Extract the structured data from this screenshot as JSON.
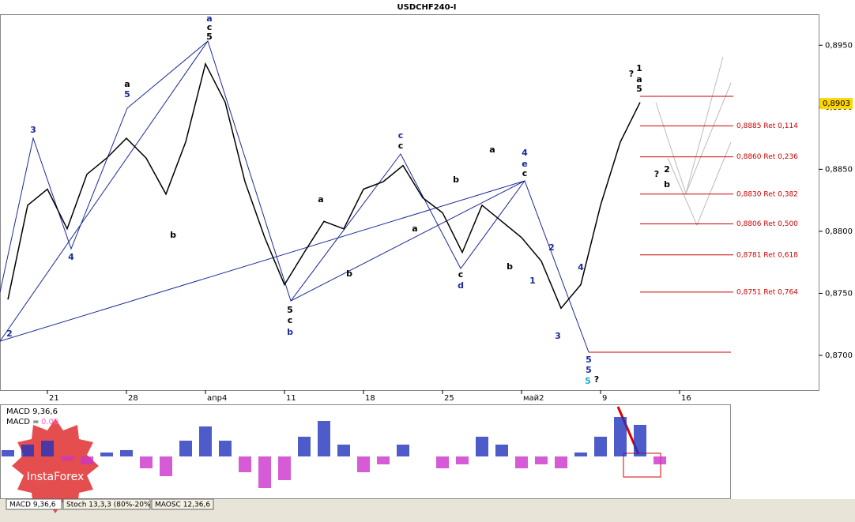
{
  "chart_data": {
    "type": "line",
    "title": "USDCHF240-I",
    "categories": [
      null,
      null,
      "21",
      null,
      null,
      null,
      "28",
      null,
      null,
      null,
      "апр4",
      null,
      null,
      null,
      "11",
      null,
      null,
      null,
      "18",
      null,
      null,
      null,
      "25",
      null,
      null,
      null,
      "май2",
      null,
      null,
      null,
      "9",
      null,
      null,
      null,
      "16",
      null,
      null
    ],
    "values": [
      0.8745,
      0.8821,
      0.8834,
      0.8802,
      0.8846,
      0.8859,
      0.8875,
      0.8859,
      0.883,
      0.8872,
      0.8935,
      0.8904,
      0.884,
      0.8795,
      0.8757,
      0.8783,
      0.8808,
      0.8802,
      0.8834,
      0.884,
      0.8853,
      0.8827,
      0.8815,
      0.8783,
      0.8821,
      0.8808,
      0.8795,
      0.8776,
      0.8738,
      0.8757,
      0.8821,
      0.8872,
      0.8904,
      null,
      null,
      null,
      null
    ],
    "color": "#000000",
    "ylim": [
      0.8672,
      0.8975
    ],
    "yticks": [
      {
        "value": 0.87,
        "label": "0,8700"
      },
      {
        "value": 0.875,
        "label": "0,8750"
      },
      {
        "value": 0.88,
        "label": "0,8800"
      },
      {
        "value": 0.885,
        "label": "0,8850"
      },
      {
        "value": 0.89,
        "label": "0,8900"
      },
      {
        "value": 0.895,
        "label": "0,8950"
      }
    ],
    "last_price": {
      "value": 0.8903,
      "label": "0,8903"
    },
    "levels": [
      {
        "value": 0.8885,
        "label": "0,8885 Ret 0,114"
      },
      {
        "value": 0.886,
        "label": "0,8860 Ret 0,236"
      },
      {
        "value": 0.883,
        "label": "0,8830 Ret 0,382"
      },
      {
        "value": 0.8806,
        "label": "0,8806 Ret 0,500"
      },
      {
        "value": 0.8781,
        "label": "0,8781 Ret 0,618"
      },
      {
        "value": 0.8751,
        "label": "0,8751 Ret 0,764"
      }
    ],
    "level_color": "#cc0000",
    "annotations": [
      "a",
      "c",
      "5",
      "a",
      "5",
      "3",
      "4",
      "2",
      "5",
      "c",
      "b",
      "c",
      "c",
      "4",
      "e",
      "c",
      "d",
      "c",
      "2",
      "1",
      "3",
      "4",
      "5",
      "5",
      "5",
      "?",
      "?",
      "1",
      "a",
      "5",
      "?",
      "2",
      "b",
      "b",
      "b",
      "a",
      "b",
      "a",
      "b",
      "a"
    ],
    "macd": {
      "title": "MACD 9,36,6",
      "readout": "MACD =",
      "readout_value": "0.00",
      "values": [
        8,
        15,
        20,
        -5,
        -10,
        5,
        8,
        -15,
        -25,
        20,
        38,
        20,
        -20,
        -40,
        -30,
        25,
        45,
        15,
        -20,
        -10,
        15,
        0,
        -15,
        -10,
        25,
        15,
        -15,
        -10,
        -15,
        5,
        25,
        50,
        40,
        -10,
        null,
        null,
        null
      ],
      "positive_color": "#2233bb",
      "negative_color": "#cc33cc"
    },
    "tabs": [
      "MACD 9,36,6",
      "Stoch 13,3,3 (80%-20%)",
      "MAOSC 12,36,6"
    ],
    "watermark": "InstaForex"
  }
}
